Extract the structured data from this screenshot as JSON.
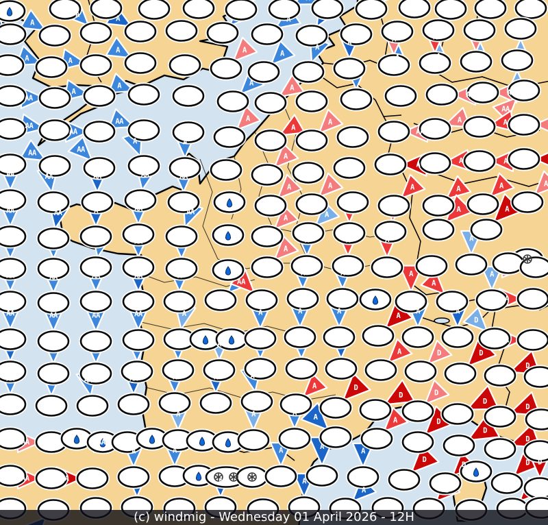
{
  "caption": {
    "text": "(c) windmig - Wednesday 01 April 2026 - 12H"
  },
  "map": {
    "colors": {
      "sea": "#D3E3EF",
      "land": "#F6D493",
      "coastline": "#000000",
      "ellipse_fill": "#FFFFFF",
      "ellipse_stroke": "#0A0A0A",
      "b1": "#79AEE6",
      "b2": "#3C86DC",
      "b3": "#1B64C8",
      "n": "#1A4A9E",
      "r1": "#F47C7C",
      "r2": "#EC3838",
      "r3": "#CC0707",
      "drop": "#1068D8",
      "flake": "#3A3A3A",
      "letter": "#FFFFFF"
    },
    "symbols": [
      "arrow-triangle",
      "station-ellipse",
      "rain-drop",
      "snowflake"
    ],
    "letters_seen": [
      "A",
      "AA",
      "D"
    ]
  },
  "stations": [
    [
      14,
      16,
      null,
      "",
      "",
      "drop"
    ],
    [
      95,
      13,
      160,
      "n",
      "",
      ""
    ],
    [
      155,
      12,
      null,
      "",
      "",
      ""
    ],
    [
      225,
      13,
      170,
      "n",
      "",
      ""
    ],
    [
      290,
      12,
      null,
      "",
      "",
      ""
    ],
    [
      352,
      14,
      225,
      "b2",
      "A",
      ""
    ],
    [
      415,
      13,
      245,
      "b2",
      "A",
      ""
    ],
    [
      478,
      12,
      null,
      "",
      "",
      ""
    ],
    [
      542,
      13,
      230,
      "b2",
      "A",
      ""
    ],
    [
      605,
      11,
      null,
      "",
      "",
      ""
    ],
    [
      658,
      13,
      225,
      "b2",
      "A",
      ""
    ],
    [
      716,
      12,
      225,
      "b1",
      "A",
      ""
    ],
    [
      775,
      12,
      225,
      "b2",
      "A",
      ""
    ],
    [
      15,
      50,
      135,
      "b3",
      "A",
      ""
    ],
    [
      80,
      52,
      120,
      "b2",
      "A",
      ""
    ],
    [
      140,
      48,
      135,
      "b2",
      "A",
      ""
    ],
    [
      205,
      46,
      120,
      "b3",
      "A",
      ""
    ],
    [
      265,
      45,
      null,
      "",
      "",
      ""
    ],
    [
      325,
      48,
      225,
      "b2",
      "A",
      ""
    ],
    [
      390,
      50,
      235,
      "b2",
      "A",
      ""
    ],
    [
      455,
      52,
      210,
      "b3",
      "A",
      ""
    ],
    [
      520,
      50,
      null,
      "",
      "",
      ""
    ],
    [
      580,
      46,
      0,
      "b2",
      "A",
      ""
    ],
    [
      640,
      44,
      0,
      "b1",
      "A",
      ""
    ],
    [
      700,
      44,
      0,
      "b1",
      "A",
      ""
    ],
    [
      760,
      42,
      0,
      "b1",
      "A",
      ""
    ],
    [
      12,
      95,
      90,
      "b3",
      "A",
      ""
    ],
    [
      75,
      98,
      110,
      "b2",
      "A",
      ""
    ],
    [
      140,
      95,
      100,
      "b2",
      "A",
      ""
    ],
    [
      205,
      92,
      120,
      "b2",
      "A",
      ""
    ],
    [
      270,
      95,
      null,
      "",
      "",
      ""
    ],
    [
      330,
      100,
      225,
      "r1",
      "A",
      ""
    ],
    [
      385,
      105,
      225,
      "b2",
      "A",
      ""
    ],
    [
      450,
      105,
      200,
      "b2",
      "A",
      ""
    ],
    [
      510,
      100,
      180,
      "b3",
      "A",
      ""
    ],
    [
      575,
      95,
      180,
      "r1",
      "A",
      ""
    ],
    [
      635,
      92,
      180,
      "r2",
      "A",
      ""
    ],
    [
      695,
      90,
      180,
      "r1",
      "A",
      ""
    ],
    [
      755,
      88,
      0,
      "b1",
      "A",
      ""
    ],
    [
      15,
      140,
      90,
      "b2",
      "AA",
      ""
    ],
    [
      80,
      143,
      90,
      "b2",
      "AA",
      ""
    ],
    [
      145,
      140,
      100,
      "b2",
      "A",
      ""
    ],
    [
      210,
      138,
      110,
      "b2",
      "A",
      ""
    ],
    [
      275,
      140,
      null,
      "",
      "",
      ""
    ],
    [
      340,
      148,
      225,
      "b2",
      "A",
      ""
    ],
    [
      395,
      150,
      235,
      "r1",
      "A",
      ""
    ],
    [
      455,
      148,
      null,
      "",
      "",
      ""
    ],
    [
      520,
      145,
      180,
      "b2",
      "A",
      ""
    ],
    [
      585,
      140,
      null,
      "",
      "",
      ""
    ],
    [
      645,
      138,
      270,
      "r1",
      "A",
      ""
    ],
    [
      705,
      135,
      270,
      "r1",
      "A",
      ""
    ],
    [
      765,
      132,
      45,
      "r1",
      "AA",
      ""
    ],
    [
      15,
      188,
      90,
      "b2",
      "AA",
      ""
    ],
    [
      80,
      190,
      100,
      "b2",
      "AA",
      ""
    ],
    [
      145,
      192,
      90,
      "b2",
      "AA",
      ""
    ],
    [
      210,
      190,
      110,
      "b2",
      "AA",
      ""
    ],
    [
      275,
      193,
      null,
      "",
      "",
      ""
    ],
    [
      335,
      200,
      225,
      "r1",
      "A",
      ""
    ],
    [
      395,
      205,
      240,
      "r2",
      "A",
      ""
    ],
    [
      455,
      205,
      225,
      "r1",
      "A",
      ""
    ],
    [
      515,
      200,
      null,
      "",
      "",
      ""
    ],
    [
      575,
      192,
      270,
      "r1",
      "AA",
      ""
    ],
    [
      635,
      188,
      250,
      "r1",
      "A",
      ""
    ],
    [
      700,
      185,
      260,
      "r2",
      "A",
      ""
    ],
    [
      765,
      182,
      270,
      "r1",
      "A",
      ""
    ],
    [
      15,
      240,
      90,
      "b3",
      "AA",
      ""
    ],
    [
      80,
      242,
      120,
      "b2",
      "AA",
      ""
    ],
    [
      145,
      245,
      135,
      "b2",
      "AA",
      ""
    ],
    [
      210,
      242,
      160,
      "b2",
      "A",
      ""
    ],
    [
      270,
      245,
      180,
      "b2",
      "A",
      ""
    ],
    [
      330,
      248,
      null,
      "",
      "",
      ""
    ],
    [
      390,
      255,
      225,
      "r1",
      "A",
      ""
    ],
    [
      450,
      252,
      null,
      "",
      "",
      ""
    ],
    [
      510,
      245,
      null,
      "",
      "",
      ""
    ],
    [
      570,
      240,
      270,
      "r3",
      "A",
      "",
      1.1
    ],
    [
      635,
      238,
      265,
      "r2",
      "A",
      ""
    ],
    [
      700,
      235,
      270,
      "r2",
      "A",
      ""
    ],
    [
      765,
      232,
      270,
      "r3",
      "A",
      "",
      1.15
    ],
    [
      15,
      292,
      180,
      "b2",
      "AA",
      ""
    ],
    [
      78,
      295,
      170,
      "b2",
      "AA",
      ""
    ],
    [
      142,
      295,
      180,
      "b3",
      "AA",
      ""
    ],
    [
      205,
      292,
      190,
      "b2",
      "AA",
      ""
    ],
    [
      268,
      295,
      180,
      "b2",
      "AA",
      ""
    ],
    [
      335,
      295,
      null,
      "",
      "",
      "drop"
    ],
    [
      395,
      300,
      225,
      "r1",
      "A",
      ""
    ],
    [
      455,
      298,
      225,
      "r1",
      "A",
      ""
    ],
    [
      515,
      295,
      null,
      "",
      "",
      ""
    ],
    [
      575,
      300,
      225,
      "r2",
      "A",
      ""
    ],
    [
      640,
      300,
      230,
      "r2",
      "A",
      ""
    ],
    [
      705,
      298,
      225,
      "r2",
      "A",
      ""
    ],
    [
      770,
      295,
      225,
      "r1",
      "A",
      ""
    ],
    [
      15,
      345,
      180,
      "b2",
      "AA",
      ""
    ],
    [
      78,
      348,
      190,
      "b3",
      "AA",
      ""
    ],
    [
      140,
      345,
      180,
      "b3",
      "A",
      ""
    ],
    [
      202,
      342,
      180,
      "b2",
      "AA",
      ""
    ],
    [
      265,
      345,
      200,
      "b2",
      "AA",
      ""
    ],
    [
      333,
      343,
      null,
      "",
      "",
      "drop"
    ],
    [
      390,
      345,
      225,
      "r1",
      "A",
      ""
    ],
    [
      450,
      340,
      225,
      "b1",
      "A",
      ""
    ],
    [
      510,
      340,
      180,
      "r2",
      "A",
      "",
      1.1
    ],
    [
      570,
      338,
      190,
      "r2",
      "A",
      ""
    ],
    [
      640,
      335,
      225,
      "r2",
      "A",
      "",
      1.15
    ],
    [
      710,
      335,
      225,
      "r3",
      "A",
      "",
      1.2
    ],
    [
      770,
      378,
      null,
      "",
      "",
      "flake"
    ],
    [
      15,
      392,
      180,
      "b2",
      "AA",
      ""
    ],
    [
      78,
      392,
      180,
      "b2",
      "AA",
      ""
    ],
    [
      140,
      390,
      190,
      "b2",
      "AA",
      ""
    ],
    [
      202,
      390,
      180,
      "b2",
      "AA",
      ""
    ],
    [
      265,
      392,
      180,
      "b2",
      "A",
      ""
    ],
    [
      333,
      394,
      null,
      "",
      "",
      "drop"
    ],
    [
      390,
      390,
      225,
      "r1",
      "A",
      ""
    ],
    [
      448,
      388,
      180,
      "b2",
      "A",
      ""
    ],
    [
      508,
      388,
      180,
      "r2",
      "A",
      ""
    ],
    [
      565,
      390,
      180,
      "r2",
      "A",
      "",
      1.1
    ],
    [
      630,
      388,
      null,
      "",
      "",
      ""
    ],
    [
      688,
      386,
      180,
      "b1",
      "A",
      ""
    ],
    [
      742,
      384,
      null,
      "",
      "",
      ""
    ],
    [
      782,
      390,
      90,
      "r1",
      "A",
      ""
    ],
    [
      15,
      440,
      180,
      "b2",
      "AA",
      ""
    ],
    [
      78,
      442,
      180,
      "b2",
      "AA",
      ""
    ],
    [
      140,
      440,
      180,
      "b2",
      "AA",
      ""
    ],
    [
      202,
      440,
      180,
      "b3",
      "AA",
      ""
    ],
    [
      262,
      440,
      180,
      "b2",
      "A",
      ""
    ],
    [
      322,
      438,
      225,
      "b2",
      "A",
      ""
    ],
    [
      382,
      438,
      135,
      "r2",
      "A",
      ""
    ],
    [
      442,
      436,
      180,
      "b2",
      "A",
      ""
    ],
    [
      500,
      436,
      180,
      "b2",
      "A",
      ""
    ],
    [
      548,
      437,
      null,
      "",
      "",
      "drop"
    ],
    [
      600,
      440,
      180,
      "r2",
      "A",
      "",
      1.1
    ],
    [
      660,
      440,
      135,
      "r2",
      "A",
      ""
    ],
    [
      718,
      438,
      180,
      "b1",
      "A",
      ""
    ],
    [
      778,
      436,
      90,
      "r2",
      "A",
      ""
    ],
    [
      15,
      495,
      180,
      "b2",
      "AA",
      ""
    ],
    [
      78,
      498,
      180,
      "b2",
      "AA",
      ""
    ],
    [
      140,
      498,
      180,
      "b2",
      "AA",
      ""
    ],
    [
      202,
      496,
      180,
      "b2",
      "AA",
      ""
    ],
    [
      262,
      495,
      190,
      "b1",
      "A",
      ""
    ],
    [
      300,
      495,
      null,
      "",
      "",
      "drop"
    ],
    [
      338,
      495,
      null,
      "",
      "",
      "drop"
    ],
    [
      380,
      494,
      180,
      "b2",
      "A",
      ""
    ],
    [
      438,
      492,
      180,
      "b2",
      "A",
      ""
    ],
    [
      495,
      492,
      180,
      "b2",
      "A",
      ""
    ],
    [
      552,
      490,
      225,
      "r3",
      "A",
      "",
      1.15
    ],
    [
      610,
      492,
      180,
      "b2",
      "A",
      ""
    ],
    [
      668,
      492,
      180,
      "b3",
      "A",
      ""
    ],
    [
      722,
      494,
      135,
      "b1",
      "D",
      ""
    ],
    [
      778,
      496,
      90,
      "r2",
      "A",
      ""
    ],
    [
      15,
      542,
      180,
      "b3",
      "AA",
      ""
    ],
    [
      78,
      545,
      180,
      "b2",
      "AA",
      ""
    ],
    [
      140,
      545,
      180,
      "b2",
      "AA",
      ""
    ],
    [
      200,
      542,
      180,
      "b2",
      "AA",
      ""
    ],
    [
      260,
      540,
      180,
      "b2",
      "A",
      ""
    ],
    [
      320,
      540,
      180,
      "b1",
      "A",
      ""
    ],
    [
      380,
      538,
      180,
      "b2",
      "A",
      ""
    ],
    [
      440,
      538,
      180,
      "b2",
      "A",
      ""
    ],
    [
      498,
      538,
      180,
      "b3",
      "A",
      ""
    ],
    [
      556,
      540,
      225,
      "r2",
      "A",
      ""
    ],
    [
      614,
      542,
      225,
      "r1",
      "D",
      ""
    ],
    [
      672,
      545,
      225,
      "r3",
      "D",
      "",
      1.2
    ],
    [
      730,
      548,
      250,
      "r3",
      "D",
      "",
      1.2
    ],
    [
      788,
      550,
      250,
      "r3",
      "D",
      "",
      1.2
    ],
    [
      15,
      590,
      180,
      "b2",
      "AA",
      ""
    ],
    [
      75,
      592,
      180,
      "b2",
      "AA",
      ""
    ],
    [
      135,
      592,
      170,
      "b2",
      "AA",
      ""
    ],
    [
      195,
      590,
      180,
      "b3",
      "AA",
      ""
    ],
    [
      255,
      588,
      180,
      "b2",
      "A",
      ""
    ],
    [
      315,
      588,
      180,
      "b3",
      "A",
      ""
    ],
    [
      375,
      586,
      170,
      "b2",
      "A",
      ""
    ],
    [
      432,
      590,
      225,
      "r2",
      "A",
      ""
    ],
    [
      490,
      595,
      225,
      "r3",
      "D",
      "",
      1.15
    ],
    [
      548,
      598,
      240,
      "r3",
      "D",
      "",
      1.2
    ],
    [
      610,
      600,
      225,
      "r1",
      "D",
      ""
    ],
    [
      668,
      604,
      245,
      "r3",
      "D",
      "",
      1.25
    ],
    [
      730,
      608,
      250,
      "r3",
      "D",
      "",
      1.2
    ],
    [
      790,
      612,
      260,
      "r3",
      "D",
      "",
      1.15
    ],
    [
      15,
      640,
      90,
      "r1",
      "AA",
      ""
    ],
    [
      75,
      645,
      90,
      "r1",
      "AA",
      ""
    ],
    [
      112,
      640,
      null,
      "",
      "",
      "drop"
    ],
    [
      150,
      645,
      null,
      "",
      "",
      "drop"
    ],
    [
      186,
      645,
      90,
      "r2",
      "AA",
      ""
    ],
    [
      222,
      640,
      null,
      "",
      "",
      "drop"
    ],
    [
      260,
      642,
      180,
      "b1",
      "A",
      ""
    ],
    [
      295,
      643,
      null,
      "",
      "",
      "drop"
    ],
    [
      333,
      645,
      null,
      "",
      "",
      "drop"
    ],
    [
      370,
      642,
      180,
      "b1",
      "A",
      ""
    ],
    [
      430,
      640,
      180,
      "b2",
      "A",
      ""
    ],
    [
      490,
      638,
      135,
      "b3",
      "A",
      "",
      1.15
    ],
    [
      550,
      640,
      225,
      "r2",
      "A",
      ""
    ],
    [
      610,
      645,
      225,
      "r3",
      "D",
      "",
      1.2
    ],
    [
      670,
      650,
      240,
      "r3",
      "D",
      "",
      1.25
    ],
    [
      730,
      655,
      250,
      "r3",
      "D",
      "",
      1.2
    ],
    [
      788,
      658,
      245,
      "r3",
      "D",
      ""
    ],
    [
      15,
      694,
      90,
      "r2",
      "AA",
      ""
    ],
    [
      75,
      698,
      90,
      "r2",
      "AA",
      ""
    ],
    [
      135,
      698,
      90,
      "r3",
      "AA",
      "",
      1.1
    ],
    [
      195,
      696,
      180,
      "b2",
      "A",
      ""
    ],
    [
      255,
      695,
      180,
      "b2",
      "A",
      ""
    ],
    [
      290,
      694,
      null,
      "",
      "",
      "drop"
    ],
    [
      330,
      696,
      null,
      "",
      "",
      "flake2"
    ],
    [
      368,
      696,
      null,
      "",
      "",
      "flake"
    ],
    [
      410,
      695,
      180,
      "b2",
      "A",
      ""
    ],
    [
      470,
      694,
      180,
      "b3",
      "A",
      "",
      1.2
    ],
    [
      530,
      696,
      180,
      "b3",
      "A",
      ""
    ],
    [
      590,
      700,
      225,
      "r3",
      "D",
      "",
      1.15
    ],
    [
      650,
      705,
      225,
      "r3",
      "D",
      ""
    ],
    [
      695,
      688,
      null,
      "",
      "",
      "drop"
    ],
    [
      740,
      705,
      225,
      "r3",
      "D",
      "",
      1.2
    ],
    [
      788,
      712,
      180,
      "r3",
      "D",
      ""
    ],
    [
      15,
      742,
      90,
      "r2",
      "AA",
      ""
    ],
    [
      78,
      744,
      45,
      "n",
      "AA",
      ""
    ],
    [
      140,
      741,
      null,
      "",
      "",
      ""
    ],
    [
      200,
      740,
      180,
      "b3",
      "A",
      ""
    ],
    [
      262,
      742,
      null,
      "",
      "",
      ""
    ],
    [
      322,
      740,
      180,
      "b3",
      "A",
      ""
    ],
    [
      384,
      743,
      null,
      "",
      "",
      ""
    ],
    [
      444,
      740,
      180,
      "b3",
      "A",
      ""
    ],
    [
      504,
      742,
      225,
      "b3",
      "A",
      ""
    ],
    [
      566,
      741,
      null,
      "",
      "",
      ""
    ],
    [
      626,
      742,
      225,
      "r3",
      "D",
      ""
    ],
    [
      688,
      744,
      null,
      "",
      "",
      ""
    ],
    [
      748,
      742,
      225,
      "r3",
      "D",
      ""
    ],
    [
      790,
      741,
      null,
      "",
      "",
      ""
    ]
  ]
}
